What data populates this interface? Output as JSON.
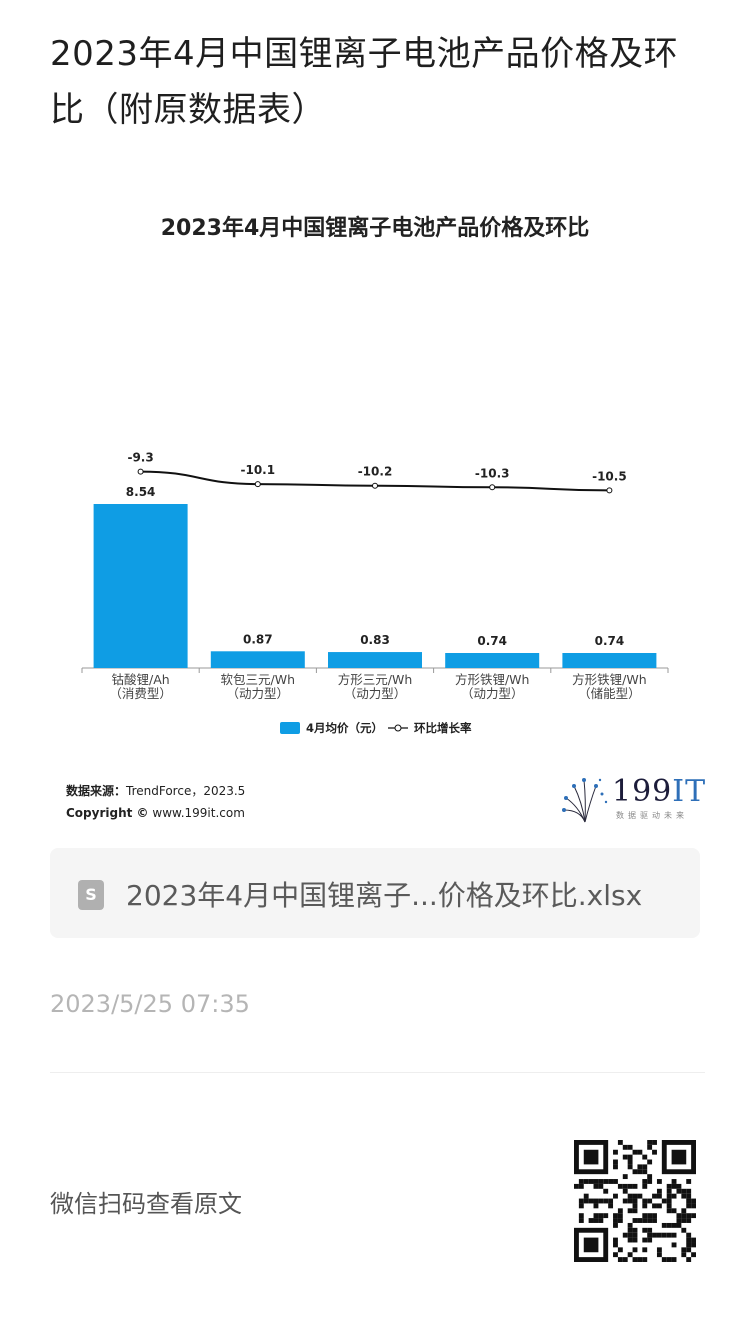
{
  "header": {
    "title": "2023年4月中国锂离子电池产品价格及环比（附原数据表）"
  },
  "chart_data": {
    "type": "bar",
    "title": "2023年4月中国锂离子电池产品价格及环比",
    "categories": [
      [
        "钴酸锂/Ah",
        "（消费型）"
      ],
      [
        "软包三元/Wh",
        "（动力型）"
      ],
      [
        "方形三元/Wh",
        "（动力型）"
      ],
      [
        "方形铁锂/Wh",
        "（动力型）"
      ],
      [
        "方形铁锂/Wh",
        "（储能型）"
      ]
    ],
    "series": [
      {
        "name": "4月均价（元）",
        "kind": "bar",
        "values": [
          8.54,
          0.87,
          0.83,
          0.74,
          0.74
        ],
        "labels": [
          "8.54",
          "0.87",
          "0.83",
          "0.74",
          "0.74"
        ],
        "color": "#0f9de4"
      },
      {
        "name": "环比增长率",
        "kind": "line",
        "values": [
          -9.3,
          -10.1,
          -10.2,
          -10.3,
          -10.5
        ],
        "labels": [
          "-9.3",
          "-10.1",
          "-10.2",
          "-10.3",
          "-10.5"
        ],
        "color": "#111111"
      }
    ],
    "legend_position": "bottom",
    "grid": false
  },
  "source": {
    "label": "数据来源：",
    "text": "TrendForce，2023.5",
    "copyright_label": "Copyright ©",
    "copyright_text": "www.199it.com"
  },
  "logo": {
    "text_num": "199",
    "text_it": "IT",
    "tagline": "数据驱动未来"
  },
  "attachment": {
    "icon": "spreadsheet-file-icon",
    "icon_glyph": "S",
    "filename": "2023年4月中国锂离子...价格及环比.xlsx"
  },
  "meta": {
    "timestamp": "2023/5/25 07:35"
  },
  "footer": {
    "scan_text": "微信扫码查看原文",
    "qr_icon": "qr-code-icon"
  }
}
